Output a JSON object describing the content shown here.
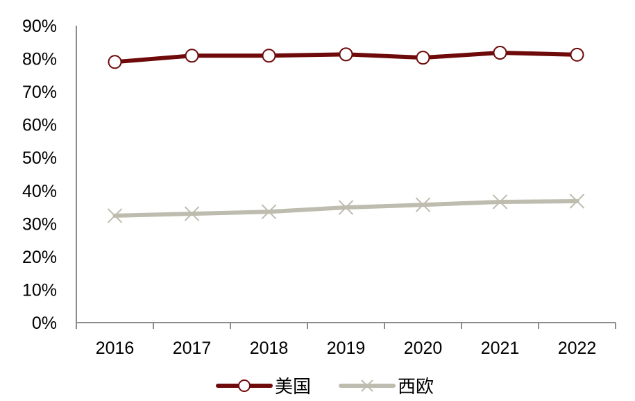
{
  "chart_data": {
    "type": "line",
    "title": "",
    "xlabel": "",
    "ylabel": "",
    "categories": [
      "2016",
      "2017",
      "2018",
      "2019",
      "2020",
      "2021",
      "2022"
    ],
    "series": [
      {
        "name": "美国",
        "color": "#6e0a0a",
        "marker": "circle",
        "values": [
          79.0,
          80.9,
          80.9,
          81.3,
          80.3,
          81.8,
          81.2
        ]
      },
      {
        "name": "西欧",
        "color": "#bdbcae",
        "marker": "x",
        "values": [
          32.4,
          33.0,
          33.6,
          34.9,
          35.7,
          36.6,
          36.8
        ]
      }
    ],
    "ylim": [
      0,
      90
    ],
    "yticks": [
      "0%",
      "10%",
      "20%",
      "30%",
      "40%",
      "50%",
      "60%",
      "70%",
      "80%",
      "90%"
    ],
    "grid": false,
    "legend_position": "bottom"
  }
}
